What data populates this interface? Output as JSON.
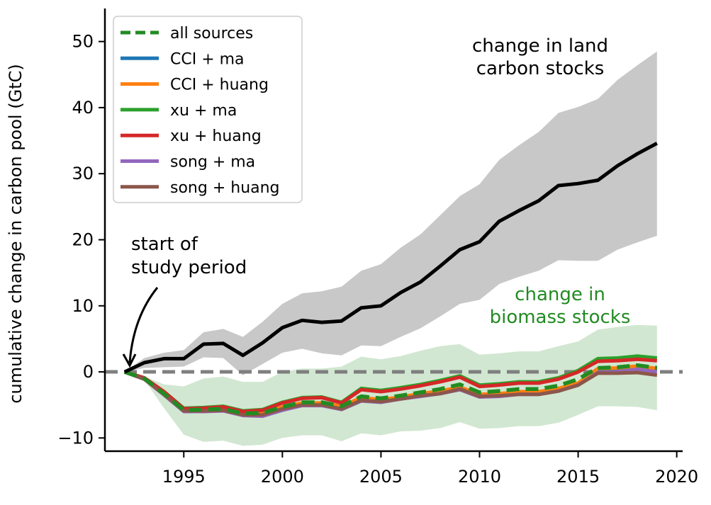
{
  "chart_data": {
    "type": "line",
    "title": "",
    "xlabel": "",
    "ylabel": "cumulative change in carbon pool (GtC)",
    "xlim": [
      1991,
      2020.3
    ],
    "ylim": [
      -12,
      55
    ],
    "x_ticks": [
      1995,
      2000,
      2005,
      2010,
      2015,
      2020
    ],
    "y_ticks": [
      -10,
      0,
      10,
      20,
      30,
      40,
      50
    ],
    "grid": false,
    "legend_position": "top-left",
    "reference_line": {
      "y": 0,
      "color": "#7f7f7f",
      "style": "dashed"
    },
    "x": [
      1992,
      1993,
      1994,
      1995,
      1996,
      1997,
      1998,
      1999,
      2000,
      2001,
      2002,
      2003,
      2004,
      2005,
      2006,
      2007,
      2008,
      2009,
      2010,
      2011,
      2012,
      2013,
      2014,
      2015,
      2016,
      2017,
      2018,
      2019
    ],
    "land_band": {
      "color": "#c8c8c8",
      "lower": [
        0,
        0.6,
        0.7,
        0.8,
        2.2,
        2.1,
        -0.5,
        1.2,
        2.9,
        3.5,
        2.8,
        2.5,
        4.0,
        3.9,
        5.3,
        6.6,
        8.4,
        10.3,
        10.9,
        13.3,
        14.4,
        15.3,
        16.9,
        16.8,
        16.8,
        18.5,
        19.6,
        20.6
      ],
      "upper": [
        0,
        2.1,
        2.9,
        3.3,
        6.0,
        6.5,
        5.3,
        7.6,
        10.3,
        11.9,
        12.2,
        12.9,
        15.3,
        16.3,
        18.8,
        20.8,
        23.7,
        26.6,
        28.4,
        32.1,
        34.3,
        36.3,
        39.2,
        40.1,
        41.3,
        44.2,
        46.4,
        48.5
      ]
    },
    "biomass_band": {
      "color": "#d1e7d1",
      "lower": [
        0,
        -1.2,
        -5.5,
        -9.5,
        -10.6,
        -10.4,
        -11.2,
        -11.0,
        -10.0,
        -9.6,
        -9.6,
        -10.5,
        -9.3,
        -9.6,
        -9.0,
        -8.9,
        -8.5,
        -7.6,
        -8.6,
        -8.5,
        -8.2,
        -8.2,
        -7.7,
        -6.5,
        -5.2,
        -5.2,
        -5.3,
        -5.8
      ],
      "upper": [
        0,
        -0.7,
        -1.9,
        -2.2,
        -1.0,
        -0.7,
        -1.5,
        -1.5,
        0.0,
        0.5,
        0.5,
        0.8,
        2.3,
        1.9,
        2.4,
        3.2,
        3.9,
        4.2,
        2.6,
        2.8,
        3.1,
        3.1,
        3.9,
        4.6,
        6.4,
        6.8,
        7.1,
        7.0
      ]
    },
    "annotations": {
      "land": {
        "text": [
          "change in land",
          "carbon stocks"
        ],
        "color": "#000000"
      },
      "biomass": {
        "text": [
          "change in",
          "biomass stocks"
        ],
        "color": "#228b22"
      },
      "start": {
        "text": [
          "start of",
          "study period"
        ],
        "color": "#000000"
      }
    },
    "series": [
      {
        "name": "CCI + ma",
        "color": "#1f77b4",
        "legend": true,
        "style": "solid",
        "values": [
          0,
          -1.1,
          -3.4,
          -5.9,
          -5.8,
          -5.7,
          -6.4,
          -6.5,
          -5.6,
          -5.0,
          -5.0,
          -5.5,
          -4.2,
          -4.5,
          -4.0,
          -3.6,
          -3.2,
          -2.6,
          -3.6,
          -3.5,
          -3.3,
          -3.3,
          -2.8,
          -2.0,
          0.2,
          0.3,
          0.6,
          0.2
        ]
      },
      {
        "name": "CCI + huang",
        "color": "#ff7f0e",
        "legend": true,
        "style": "solid",
        "values": [
          0,
          -1.0,
          -3.2,
          -5.7,
          -5.6,
          -5.5,
          -6.3,
          -6.2,
          -5.3,
          -4.7,
          -4.7,
          -5.2,
          -3.9,
          -4.2,
          -3.8,
          -3.3,
          -2.9,
          -2.3,
          -3.4,
          -3.3,
          -3.0,
          -3.0,
          -2.5,
          -1.7,
          0.5,
          0.6,
          0.9,
          0.5
        ]
      },
      {
        "name": "xu + ma",
        "color": "#2ca02c",
        "legend": true,
        "style": "solid",
        "values": [
          0,
          -0.9,
          -3.0,
          -5.5,
          -5.4,
          -5.2,
          -5.9,
          -5.7,
          -4.6,
          -3.9,
          -3.8,
          -4.6,
          -2.5,
          -2.8,
          -2.4,
          -1.9,
          -1.3,
          -0.6,
          -2.0,
          -1.8,
          -1.5,
          -1.5,
          -0.9,
          0.2,
          2.0,
          2.1,
          2.4,
          2.1
        ]
      },
      {
        "name": "xu + huang",
        "color": "#d62728",
        "legend": true,
        "style": "solid",
        "values": [
          0,
          -0.9,
          -3.0,
          -5.6,
          -5.5,
          -5.3,
          -6.0,
          -5.8,
          -4.7,
          -4.0,
          -3.9,
          -4.7,
          -2.7,
          -3.0,
          -2.6,
          -2.1,
          -1.5,
          -0.8,
          -2.2,
          -2.0,
          -1.7,
          -1.7,
          -1.1,
          0.0,
          1.6,
          1.7,
          1.9,
          1.7
        ]
      },
      {
        "name": "song + ma",
        "color": "#9467bd",
        "legend": true,
        "style": "solid",
        "values": [
          0,
          -1.1,
          -3.5,
          -6.0,
          -6.0,
          -5.9,
          -6.6,
          -6.7,
          -5.8,
          -5.1,
          -5.1,
          -5.7,
          -4.4,
          -4.6,
          -4.1,
          -3.7,
          -3.3,
          -2.7,
          -3.8,
          -3.7,
          -3.4,
          -3.4,
          -2.9,
          -2.0,
          -0.1,
          0.0,
          0.4,
          0.0
        ]
      },
      {
        "name": "song + huang",
        "color": "#8c564b",
        "legend": true,
        "style": "solid",
        "values": [
          0,
          -1.1,
          -3.4,
          -5.9,
          -5.9,
          -5.8,
          -6.5,
          -6.5,
          -5.6,
          -5.0,
          -5.0,
          -5.6,
          -4.3,
          -4.5,
          -4.1,
          -3.6,
          -3.3,
          -2.6,
          -3.7,
          -3.6,
          -3.4,
          -3.4,
          -2.9,
          -2.0,
          -0.2,
          -0.2,
          -0.1,
          -0.5
        ]
      },
      {
        "name": "all sources",
        "color": "#228b22",
        "legend": true,
        "style": "dashed",
        "values": [
          0,
          -1.0,
          -3.3,
          -5.8,
          -5.7,
          -5.6,
          -6.3,
          -6.2,
          -5.3,
          -4.6,
          -4.6,
          -5.2,
          -3.7,
          -4.0,
          -3.6,
          -3.1,
          -2.6,
          -1.9,
          -3.1,
          -2.9,
          -2.6,
          -2.6,
          -2.1,
          -1.1,
          0.6,
          0.7,
          1.0,
          0.6
        ]
      },
      {
        "name": "",
        "color": "#000000",
        "legend": false,
        "style": "solid",
        "values": [
          0,
          1.4,
          2.0,
          2.0,
          4.2,
          4.3,
          2.5,
          4.4,
          6.7,
          7.8,
          7.5,
          7.7,
          9.7,
          10.0,
          12.0,
          13.6,
          16.0,
          18.5,
          19.7,
          22.8,
          24.4,
          25.9,
          28.2,
          28.5,
          29.0,
          31.2,
          33.0,
          34.6
        ]
      }
    ],
    "legend_order": [
      "all sources",
      "CCI + ma",
      "CCI + huang",
      "xu + ma",
      "xu + huang",
      "song + ma",
      "song + huang"
    ]
  }
}
